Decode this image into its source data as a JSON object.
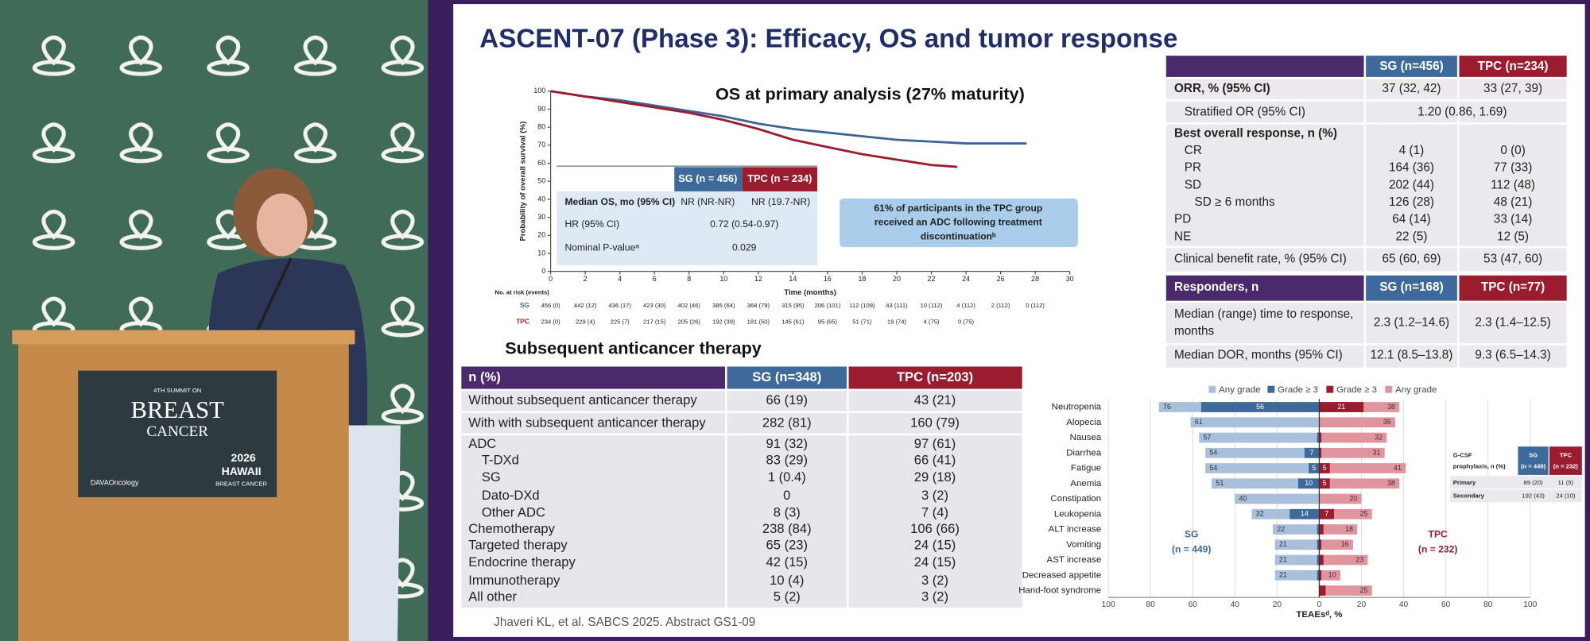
{
  "photo": {
    "podium": {
      "edition": "4TH SUMMIT ON",
      "line1": "BREAST",
      "line2": "CANCER",
      "sponsor": "DAVAOncology",
      "year": "2026",
      "place": "HAWAII",
      "event": "BREAST CANCER"
    }
  },
  "slide": {
    "title": "ASCENT-07 (Phase 3): Efficacy, OS and tumor response",
    "os_chart": {
      "title": "OS at primary analysis (27% maturity)",
      "y_label": "Probability of overall survival (%)",
      "x_label": "Time (months)",
      "xlim": [
        0,
        30
      ],
      "xticks": [
        0,
        2,
        4,
        6,
        8,
        10,
        12,
        14,
        16,
        18,
        20,
        22,
        24,
        26,
        28,
        30
      ],
      "ylim": [
        0,
        100
      ],
      "yticks": [
        0,
        10,
        20,
        30,
        40,
        50,
        60,
        70,
        80,
        90,
        100
      ],
      "series": [
        {
          "color": "#3e6596",
          "x": [
            0,
            2,
            4,
            6,
            8,
            10,
            12,
            14,
            16,
            18,
            20,
            22,
            24,
            26,
            27.5
          ],
          "values": [
            100,
            97,
            95,
            92,
            89,
            86,
            82,
            79,
            77,
            75,
            73,
            72,
            71,
            71,
            71
          ]
        },
        {
          "color": "#9b1c2e",
          "x": [
            0,
            2,
            4,
            6,
            8,
            10,
            12,
            14,
            16,
            18,
            20,
            22,
            23.5
          ],
          "values": [
            100,
            97,
            94,
            91,
            88,
            84,
            79,
            73,
            69,
            65,
            62,
            59,
            58
          ]
        }
      ],
      "table": {
        "headers": [
          "SG (n = 456)",
          "TPC (n = 234)"
        ],
        "rows": [
          {
            "label": "Median OS, mo (95% CI)",
            "values": [
              "NR (NR-NR)",
              "NR (19.7-NR)"
            ]
          },
          {
            "label": "HR (95% CI)",
            "values": [
              "0.72 (0.54-0.97)"
            ]
          },
          {
            "label": "Nominal P-valueᵃ",
            "values": [
              "0.029"
            ]
          }
        ]
      },
      "note": [
        "61% of participants in the TPC group",
        "received an ADC following treatment",
        "discontinuationᵇ"
      ],
      "risk": {
        "title": "No. at risk (events)",
        "rows": [
          {
            "name": "SG",
            "values": [
              "456 (0)",
              "442 (12)",
              "436 (17)",
              "423 (30)",
              "402 (46)",
              "385 (64)",
              "368 (79)",
              "315 (95)",
              "206 (101)",
              "112 (109)",
              "43 (111)",
              "10 (112)",
              "4 (112)",
              "2 (112)",
              "0 (112)"
            ]
          },
          {
            "name": "TPC",
            "values": [
              "234 (0)",
              "229 (4)",
              "225 (7)",
              "217 (15)",
              "205 (26)",
              "192 (39)",
              "181 (50)",
              "145 (61)",
              "95 (65)",
              "51 (71)",
              "19 (74)",
              "4 (75)",
              "0 (75)"
            ]
          }
        ]
      }
    },
    "subsequent": {
      "title": "Subsequent anticancer therapy",
      "headers": [
        "n (%)",
        "SG (n=348)",
        "TPC (n=203)"
      ],
      "rows": [
        [
          "Without subsequent anticancer therapy",
          "66 (19)",
          "43 (21)"
        ],
        [
          "With with subsequent anticancer therapy",
          "282 (81)",
          "160 (79)"
        ],
        [
          "ADC",
          "91 (32)",
          "97 (61)"
        ],
        [
          "T-DXd",
          "83 (29)",
          "66 (41)"
        ],
        [
          "SG",
          "1 (0.4)",
          "29 (18)"
        ],
        [
          "Dato-DXd",
          "0",
          "3 (2)"
        ],
        [
          "Other ADC",
          "8 (3)",
          "7 (4)"
        ],
        [
          "Chemotherapy",
          "238 (84)",
          "106 (66)"
        ],
        [
          "Targeted therapy",
          "65 (23)",
          "24 (15)"
        ],
        [
          "Endocrine therapy",
          "42 (15)",
          "24 (15)"
        ],
        [
          "Immunotherapy",
          "10 (4)",
          "3 (2)"
        ],
        [
          "All other",
          "5 (2)",
          "3 (2)"
        ]
      ]
    },
    "response": {
      "headers": [
        "SG (n=456)",
        "TPC (n=234)"
      ],
      "rows": [
        {
          "label": "ORR, % (95% CI)",
          "values": [
            "37 (32, 42)",
            "33 (27, 39)"
          ]
        },
        {
          "label": "Stratified OR (95% CI)",
          "values": [
            "1.20 (0.86, 1.69)"
          ]
        },
        {
          "label": "Best overall response, n (%)",
          "values": []
        },
        {
          "label": "CR",
          "values": [
            "4 (1)",
            "0 (0)"
          ]
        },
        {
          "label": "PR",
          "values": [
            "164 (36)",
            "77 (33)"
          ]
        },
        {
          "label": "SD",
          "values": [
            "202 (44)",
            "112 (48)"
          ]
        },
        {
          "label": "SD ≥ 6 months",
          "values": [
            "126 (28)",
            "48 (21)"
          ]
        },
        {
          "label": "PD",
          "values": [
            "64 (14)",
            "33 (14)"
          ]
        },
        {
          "label": "NE",
          "values": [
            "22 (5)",
            "12 (5)"
          ]
        },
        {
          "label": "Clinical benefit rate, % (95% CI)",
          "values": [
            "65 (60, 69)",
            "53 (47, 60)"
          ]
        }
      ],
      "responders": {
        "headers": [
          "Responders, n",
          "SG (n=168)",
          "TPC (n=77)"
        ],
        "rows": [
          {
            "label": [
              "Median (range) time to response,",
              "months"
            ],
            "values": [
              "2.3 (1.2–14.6)",
              "2.3 (1.4–12.5)"
            ]
          },
          {
            "label": [
              "Median DOR, months (95% CI)"
            ],
            "values": [
              "12.1 (8.5–13.8)",
              "9.3 (6.5–14.3)"
            ]
          }
        ]
      }
    },
    "teae": {
      "categories": [
        "Neutropenia",
        "Alopecia",
        "Nausea",
        "Diarrhea",
        "Fatigue",
        "Anemia",
        "Constipation",
        "Leukopenia",
        "ALT increase",
        "Vomiting",
        "AST increase",
        "Decreased appetite",
        "Hand-foot syndrome"
      ],
      "xlim": [
        0,
        100
      ],
      "x_label": "TEAEsᵈ, %",
      "left": {
        "label": "SG",
        "n": "(n = 449)",
        "xticks": [
          100,
          80,
          60,
          40,
          20
        ],
        "series": [
          {
            "name": "Any grade",
            "color": "#a9c0dc",
            "values": [
              76,
              61,
              57,
              54,
              54,
              51,
              40,
              32,
              22,
              21,
              21,
              21,
              null
            ]
          },
          {
            "name": "Grade ≥ 3",
            "color": "#3d6a9a",
            "values": [
              56,
              null,
              1,
              7,
              5,
              10,
              null,
              14,
              1,
              1,
              1,
              1,
              null
            ]
          }
        ]
      },
      "right": {
        "label": "TPC",
        "n": "(n = 232)",
        "xticks": [
          0,
          20,
          40,
          60,
          80,
          100
        ],
        "series": [
          {
            "name": "Grade ≥ 3",
            "color": "#9b1c2e",
            "values": [
              21,
              null,
              1,
              1,
              5,
              5,
              null,
              7,
              2,
              1,
              2,
              1,
              3
            ]
          },
          {
            "name": "Any grade",
            "color": "#e0959e",
            "values": [
              38,
              36,
              32,
              31,
              41,
              38,
              20,
              25,
              18,
              16,
              23,
              10,
              25
            ]
          }
        ]
      },
      "gcsf": {
        "headers": [
          [
            "G-CSF",
            "prophylaxis, n (%)"
          ],
          [
            "SG",
            "(n = 449)"
          ],
          [
            "TPC",
            "(n = 232)"
          ]
        ],
        "rows": [
          [
            "Primary",
            "89 (20)",
            "11 (5)"
          ],
          [
            "Secondary",
            "192 (43)",
            "24 (10)"
          ]
        ]
      }
    },
    "citation": "Jhaveri KL, et al. SABCS 2025. Abstract GS1-09"
  }
}
